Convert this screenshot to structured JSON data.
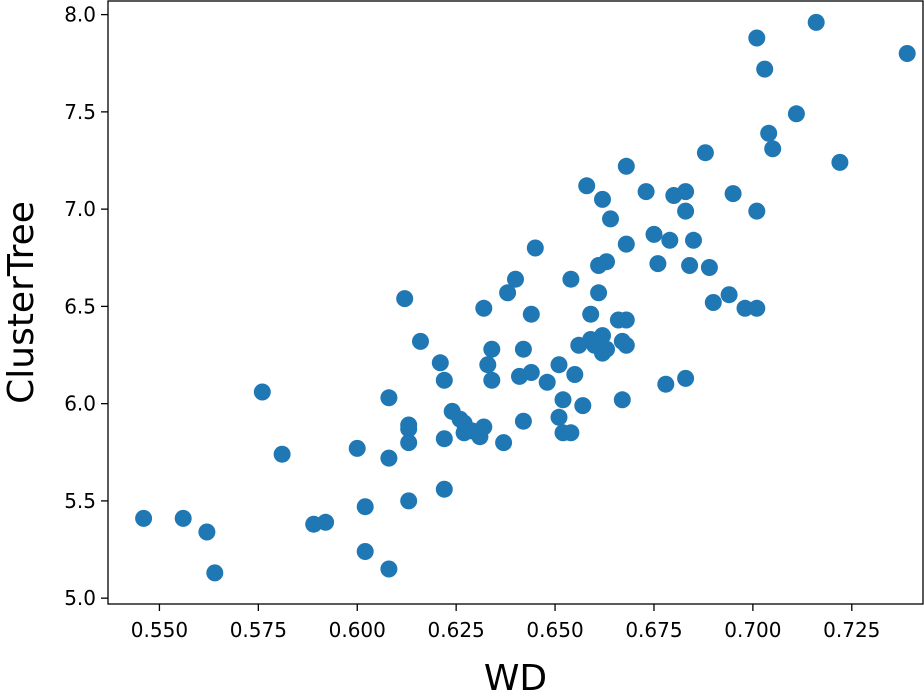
{
  "chart_data": {
    "type": "scatter",
    "title": "",
    "xlabel": "WD",
    "ylabel": "ClusterTree",
    "xlim": [
      0.537,
      0.743
    ],
    "ylim": [
      4.97,
      8.07
    ],
    "xticks": [
      "0.550",
      "0.575",
      "0.600",
      "0.625",
      "0.650",
      "0.675",
      "0.700",
      "0.725"
    ],
    "yticks": [
      "5.0",
      "5.5",
      "6.0",
      "6.5",
      "7.0",
      "7.5",
      "8.0"
    ],
    "grid": false,
    "legend": "none",
    "color": "#1f77b4",
    "series": [
      {
        "points": [
          [
            0.546,
            5.41
          ],
          [
            0.556,
            5.41
          ],
          [
            0.562,
            5.34
          ],
          [
            0.564,
            5.13
          ],
          [
            0.576,
            6.06
          ],
          [
            0.581,
            5.74
          ],
          [
            0.589,
            5.38
          ],
          [
            0.592,
            5.39
          ],
          [
            0.6,
            5.77
          ],
          [
            0.602,
            5.24
          ],
          [
            0.602,
            5.47
          ],
          [
            0.608,
            6.03
          ],
          [
            0.608,
            5.72
          ],
          [
            0.608,
            5.15
          ],
          [
            0.612,
            6.54
          ],
          [
            0.613,
            5.89
          ],
          [
            0.613,
            5.87
          ],
          [
            0.613,
            5.8
          ],
          [
            0.613,
            5.5
          ],
          [
            0.616,
            6.32
          ],
          [
            0.621,
            6.21
          ],
          [
            0.622,
            6.12
          ],
          [
            0.622,
            5.82
          ],
          [
            0.622,
            5.56
          ],
          [
            0.624,
            5.96
          ],
          [
            0.626,
            5.92
          ],
          [
            0.627,
            5.85
          ],
          [
            0.627,
            5.9
          ],
          [
            0.629,
            5.86
          ],
          [
            0.631,
            5.83
          ],
          [
            0.632,
            5.88
          ],
          [
            0.632,
            6.49
          ],
          [
            0.633,
            6.2
          ],
          [
            0.634,
            6.28
          ],
          [
            0.634,
            6.12
          ],
          [
            0.637,
            5.8
          ],
          [
            0.638,
            6.57
          ],
          [
            0.64,
            6.64
          ],
          [
            0.641,
            6.14
          ],
          [
            0.642,
            6.28
          ],
          [
            0.642,
            5.91
          ],
          [
            0.644,
            6.46
          ],
          [
            0.644,
            6.16
          ],
          [
            0.645,
            6.8
          ],
          [
            0.648,
            6.11
          ],
          [
            0.651,
            6.2
          ],
          [
            0.651,
            5.93
          ],
          [
            0.652,
            6.02
          ],
          [
            0.652,
            5.85
          ],
          [
            0.654,
            5.85
          ],
          [
            0.654,
            6.64
          ],
          [
            0.655,
            6.15
          ],
          [
            0.656,
            6.3
          ],
          [
            0.657,
            5.99
          ],
          [
            0.658,
            7.12
          ],
          [
            0.659,
            6.46
          ],
          [
            0.659,
            6.33
          ],
          [
            0.66,
            6.3
          ],
          [
            0.661,
            6.57
          ],
          [
            0.661,
            6.71
          ],
          [
            0.662,
            7.05
          ],
          [
            0.662,
            6.35
          ],
          [
            0.662,
            6.26
          ],
          [
            0.663,
            6.28
          ],
          [
            0.663,
            6.73
          ],
          [
            0.664,
            6.95
          ],
          [
            0.666,
            6.43
          ],
          [
            0.667,
            6.32
          ],
          [
            0.667,
            6.02
          ],
          [
            0.668,
            6.82
          ],
          [
            0.668,
            6.43
          ],
          [
            0.668,
            6.3
          ],
          [
            0.668,
            7.22
          ],
          [
            0.673,
            7.09
          ],
          [
            0.675,
            6.87
          ],
          [
            0.676,
            6.72
          ],
          [
            0.678,
            6.1
          ],
          [
            0.679,
            6.84
          ],
          [
            0.68,
            7.07
          ],
          [
            0.683,
            7.09
          ],
          [
            0.683,
            6.99
          ],
          [
            0.683,
            6.13
          ],
          [
            0.684,
            6.71
          ],
          [
            0.685,
            6.84
          ],
          [
            0.688,
            7.29
          ],
          [
            0.689,
            6.7
          ],
          [
            0.69,
            6.52
          ],
          [
            0.694,
            6.56
          ],
          [
            0.695,
            7.08
          ],
          [
            0.698,
            6.49
          ],
          [
            0.701,
            6.49
          ],
          [
            0.701,
            6.99
          ],
          [
            0.701,
            7.88
          ],
          [
            0.703,
            7.72
          ],
          [
            0.704,
            7.39
          ],
          [
            0.705,
            7.31
          ],
          [
            0.711,
            7.49
          ],
          [
            0.716,
            7.96
          ],
          [
            0.722,
            7.24
          ],
          [
            0.739,
            7.8
          ]
        ]
      }
    ]
  }
}
